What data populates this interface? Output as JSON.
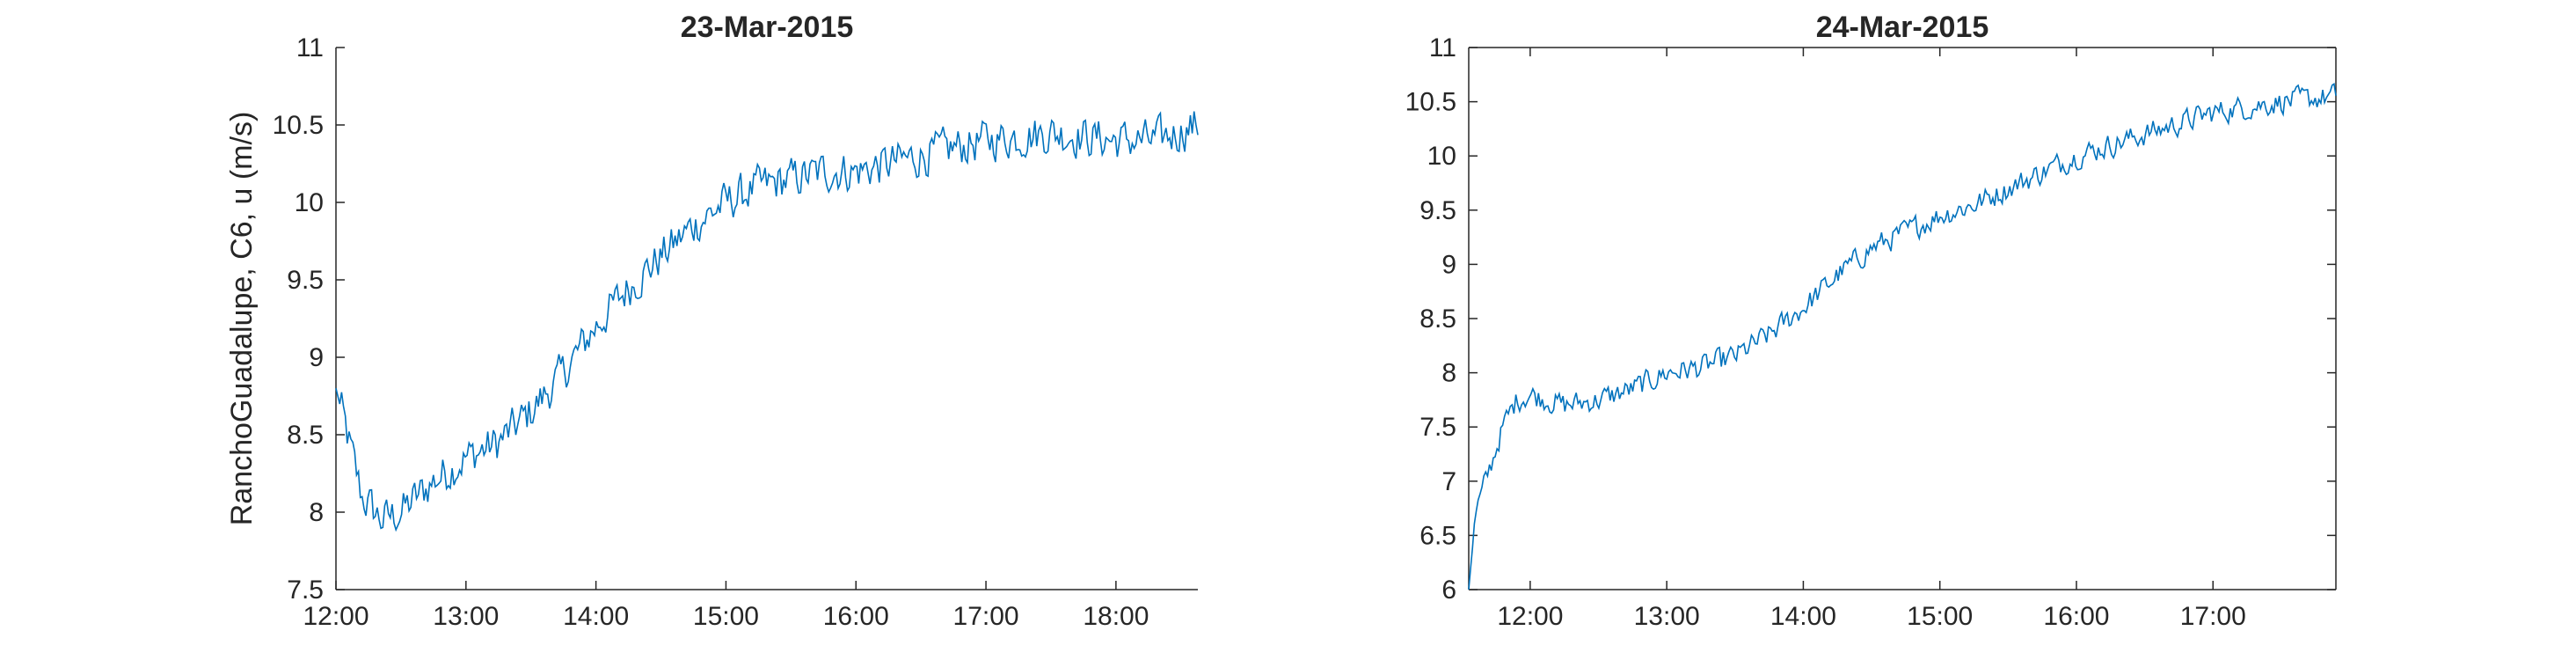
{
  "chart_data": [
    {
      "type": "line",
      "title": "23-Mar-2015",
      "xlabel": "",
      "ylabel": "RanchoGuadalupe, C6, u (m/s)",
      "x_ticks": [
        "12:00",
        "13:00",
        "14:00",
        "15:00",
        "16:00",
        "17:00",
        "18:00"
      ],
      "x_range_hours": [
        12.0,
        18.63
      ],
      "y_ticks": [
        "7.5",
        "8",
        "8.5",
        "9",
        "9.5",
        "10",
        "10.5",
        "11"
      ],
      "ylim": [
        7.5,
        11
      ],
      "box": false,
      "grid": false,
      "series": [
        {
          "color": "#0072BD",
          "x_hours": [
            12.0,
            12.1,
            12.2,
            12.35,
            12.5,
            12.75,
            13.0,
            13.25,
            13.5,
            13.75,
            14.0,
            14.25,
            14.5,
            14.75,
            15.0,
            15.25,
            15.5,
            15.75,
            16.0,
            16.5,
            17.0,
            17.5,
            18.0,
            18.3,
            18.63
          ],
          "values": [
            8.8,
            8.45,
            8.1,
            7.95,
            8.0,
            8.2,
            8.35,
            8.45,
            8.65,
            8.9,
            9.2,
            9.45,
            9.65,
            9.85,
            10.0,
            10.1,
            10.15,
            10.2,
            10.2,
            10.3,
            10.4,
            10.45,
            10.4,
            10.4,
            10.5
          ],
          "noise_amplitude": 0.12
        }
      ]
    },
    {
      "type": "line",
      "title": "24-Mar-2015",
      "xlabel": "",
      "ylabel": "",
      "x_ticks": [
        "12:00",
        "13:00",
        "14:00",
        "15:00",
        "16:00",
        "17:00"
      ],
      "x_range_hours": [
        11.55,
        17.9
      ],
      "y_ticks": [
        "6",
        "6.5",
        "7",
        "7.5",
        "8",
        "8.5",
        "9",
        "9.5",
        "10",
        "10.5",
        "11"
      ],
      "ylim": [
        6,
        11
      ],
      "box": true,
      "grid": false,
      "series": [
        {
          "color": "#0072BD",
          "x_hours": [
            11.55,
            11.6,
            11.7,
            11.8,
            11.9,
            12.0,
            12.25,
            12.5,
            12.75,
            13.0,
            13.25,
            13.5,
            13.75,
            14.0,
            14.25,
            14.5,
            14.75,
            15.0,
            15.25,
            15.5,
            15.75,
            16.0,
            16.25,
            16.5,
            16.75,
            17.0,
            17.25,
            17.5,
            17.9
          ],
          "values": [
            6.0,
            6.7,
            7.1,
            7.5,
            7.75,
            7.8,
            7.7,
            7.75,
            7.85,
            8.0,
            8.05,
            8.15,
            8.35,
            8.6,
            8.9,
            9.15,
            9.3,
            9.45,
            9.55,
            9.7,
            9.85,
            10.0,
            10.1,
            10.2,
            10.3,
            10.4,
            10.45,
            10.5,
            10.55
          ],
          "noise_amplitude": 0.1
        }
      ]
    }
  ]
}
